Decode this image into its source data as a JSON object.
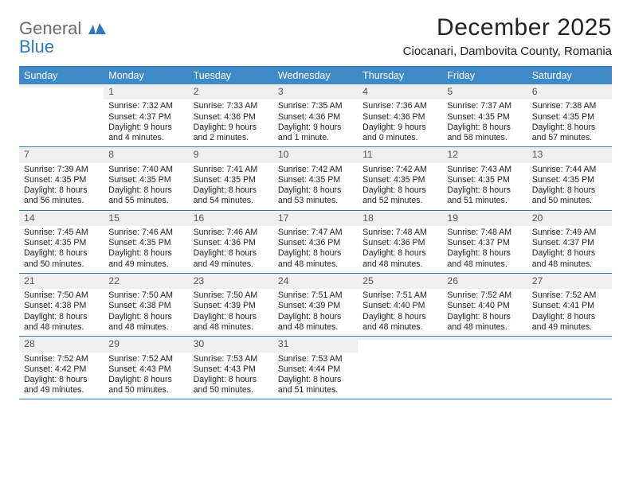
{
  "logo": {
    "line1": "General",
    "line2": "Blue"
  },
  "title": "December 2025",
  "location": "Ciocanari, Dambovita County, Romania",
  "weekdays": [
    "Sunday",
    "Monday",
    "Tuesday",
    "Wednesday",
    "Thursday",
    "Friday",
    "Saturday"
  ],
  "colors": {
    "header_bar": "#3e8ac9",
    "rule": "#2f78bd",
    "daynum_bg": "#efefef",
    "text": "#222222",
    "logo_gray": "#6b6b6b",
    "logo_blue": "#2f78bd"
  },
  "days": [
    {
      "n": "",
      "sunrise": "",
      "sunset": "",
      "daylight": ""
    },
    {
      "n": "1",
      "sunrise": "Sunrise: 7:32 AM",
      "sunset": "Sunset: 4:37 PM",
      "daylight": "Daylight: 9 hours and 4 minutes."
    },
    {
      "n": "2",
      "sunrise": "Sunrise: 7:33 AM",
      "sunset": "Sunset: 4:36 PM",
      "daylight": "Daylight: 9 hours and 2 minutes."
    },
    {
      "n": "3",
      "sunrise": "Sunrise: 7:35 AM",
      "sunset": "Sunset: 4:36 PM",
      "daylight": "Daylight: 9 hours and 1 minute."
    },
    {
      "n": "4",
      "sunrise": "Sunrise: 7:36 AM",
      "sunset": "Sunset: 4:36 PM",
      "daylight": "Daylight: 9 hours and 0 minutes."
    },
    {
      "n": "5",
      "sunrise": "Sunrise: 7:37 AM",
      "sunset": "Sunset: 4:35 PM",
      "daylight": "Daylight: 8 hours and 58 minutes."
    },
    {
      "n": "6",
      "sunrise": "Sunrise: 7:38 AM",
      "sunset": "Sunset: 4:35 PM",
      "daylight": "Daylight: 8 hours and 57 minutes."
    },
    {
      "n": "7",
      "sunrise": "Sunrise: 7:39 AM",
      "sunset": "Sunset: 4:35 PM",
      "daylight": "Daylight: 8 hours and 56 minutes."
    },
    {
      "n": "8",
      "sunrise": "Sunrise: 7:40 AM",
      "sunset": "Sunset: 4:35 PM",
      "daylight": "Daylight: 8 hours and 55 minutes."
    },
    {
      "n": "9",
      "sunrise": "Sunrise: 7:41 AM",
      "sunset": "Sunset: 4:35 PM",
      "daylight": "Daylight: 8 hours and 54 minutes."
    },
    {
      "n": "10",
      "sunrise": "Sunrise: 7:42 AM",
      "sunset": "Sunset: 4:35 PM",
      "daylight": "Daylight: 8 hours and 53 minutes."
    },
    {
      "n": "11",
      "sunrise": "Sunrise: 7:42 AM",
      "sunset": "Sunset: 4:35 PM",
      "daylight": "Daylight: 8 hours and 52 minutes."
    },
    {
      "n": "12",
      "sunrise": "Sunrise: 7:43 AM",
      "sunset": "Sunset: 4:35 PM",
      "daylight": "Daylight: 8 hours and 51 minutes."
    },
    {
      "n": "13",
      "sunrise": "Sunrise: 7:44 AM",
      "sunset": "Sunset: 4:35 PM",
      "daylight": "Daylight: 8 hours and 50 minutes."
    },
    {
      "n": "14",
      "sunrise": "Sunrise: 7:45 AM",
      "sunset": "Sunset: 4:35 PM",
      "daylight": "Daylight: 8 hours and 50 minutes."
    },
    {
      "n": "15",
      "sunrise": "Sunrise: 7:46 AM",
      "sunset": "Sunset: 4:35 PM",
      "daylight": "Daylight: 8 hours and 49 minutes."
    },
    {
      "n": "16",
      "sunrise": "Sunrise: 7:46 AM",
      "sunset": "Sunset: 4:36 PM",
      "daylight": "Daylight: 8 hours and 49 minutes."
    },
    {
      "n": "17",
      "sunrise": "Sunrise: 7:47 AM",
      "sunset": "Sunset: 4:36 PM",
      "daylight": "Daylight: 8 hours and 48 minutes."
    },
    {
      "n": "18",
      "sunrise": "Sunrise: 7:48 AM",
      "sunset": "Sunset: 4:36 PM",
      "daylight": "Daylight: 8 hours and 48 minutes."
    },
    {
      "n": "19",
      "sunrise": "Sunrise: 7:48 AM",
      "sunset": "Sunset: 4:37 PM",
      "daylight": "Daylight: 8 hours and 48 minutes."
    },
    {
      "n": "20",
      "sunrise": "Sunrise: 7:49 AM",
      "sunset": "Sunset: 4:37 PM",
      "daylight": "Daylight: 8 hours and 48 minutes."
    },
    {
      "n": "21",
      "sunrise": "Sunrise: 7:50 AM",
      "sunset": "Sunset: 4:38 PM",
      "daylight": "Daylight: 8 hours and 48 minutes."
    },
    {
      "n": "22",
      "sunrise": "Sunrise: 7:50 AM",
      "sunset": "Sunset: 4:38 PM",
      "daylight": "Daylight: 8 hours and 48 minutes."
    },
    {
      "n": "23",
      "sunrise": "Sunrise: 7:50 AM",
      "sunset": "Sunset: 4:39 PM",
      "daylight": "Daylight: 8 hours and 48 minutes."
    },
    {
      "n": "24",
      "sunrise": "Sunrise: 7:51 AM",
      "sunset": "Sunset: 4:39 PM",
      "daylight": "Daylight: 8 hours and 48 minutes."
    },
    {
      "n": "25",
      "sunrise": "Sunrise: 7:51 AM",
      "sunset": "Sunset: 4:40 PM",
      "daylight": "Daylight: 8 hours and 48 minutes."
    },
    {
      "n": "26",
      "sunrise": "Sunrise: 7:52 AM",
      "sunset": "Sunset: 4:40 PM",
      "daylight": "Daylight: 8 hours and 48 minutes."
    },
    {
      "n": "27",
      "sunrise": "Sunrise: 7:52 AM",
      "sunset": "Sunset: 4:41 PM",
      "daylight": "Daylight: 8 hours and 49 minutes."
    },
    {
      "n": "28",
      "sunrise": "Sunrise: 7:52 AM",
      "sunset": "Sunset: 4:42 PM",
      "daylight": "Daylight: 8 hours and 49 minutes."
    },
    {
      "n": "29",
      "sunrise": "Sunrise: 7:52 AM",
      "sunset": "Sunset: 4:43 PM",
      "daylight": "Daylight: 8 hours and 50 minutes."
    },
    {
      "n": "30",
      "sunrise": "Sunrise: 7:53 AM",
      "sunset": "Sunset: 4:43 PM",
      "daylight": "Daylight: 8 hours and 50 minutes."
    },
    {
      "n": "31",
      "sunrise": "Sunrise: 7:53 AM",
      "sunset": "Sunset: 4:44 PM",
      "daylight": "Daylight: 8 hours and 51 minutes."
    },
    {
      "n": "",
      "sunrise": "",
      "sunset": "",
      "daylight": ""
    },
    {
      "n": "",
      "sunrise": "",
      "sunset": "",
      "daylight": ""
    },
    {
      "n": "",
      "sunrise": "",
      "sunset": "",
      "daylight": ""
    }
  ]
}
